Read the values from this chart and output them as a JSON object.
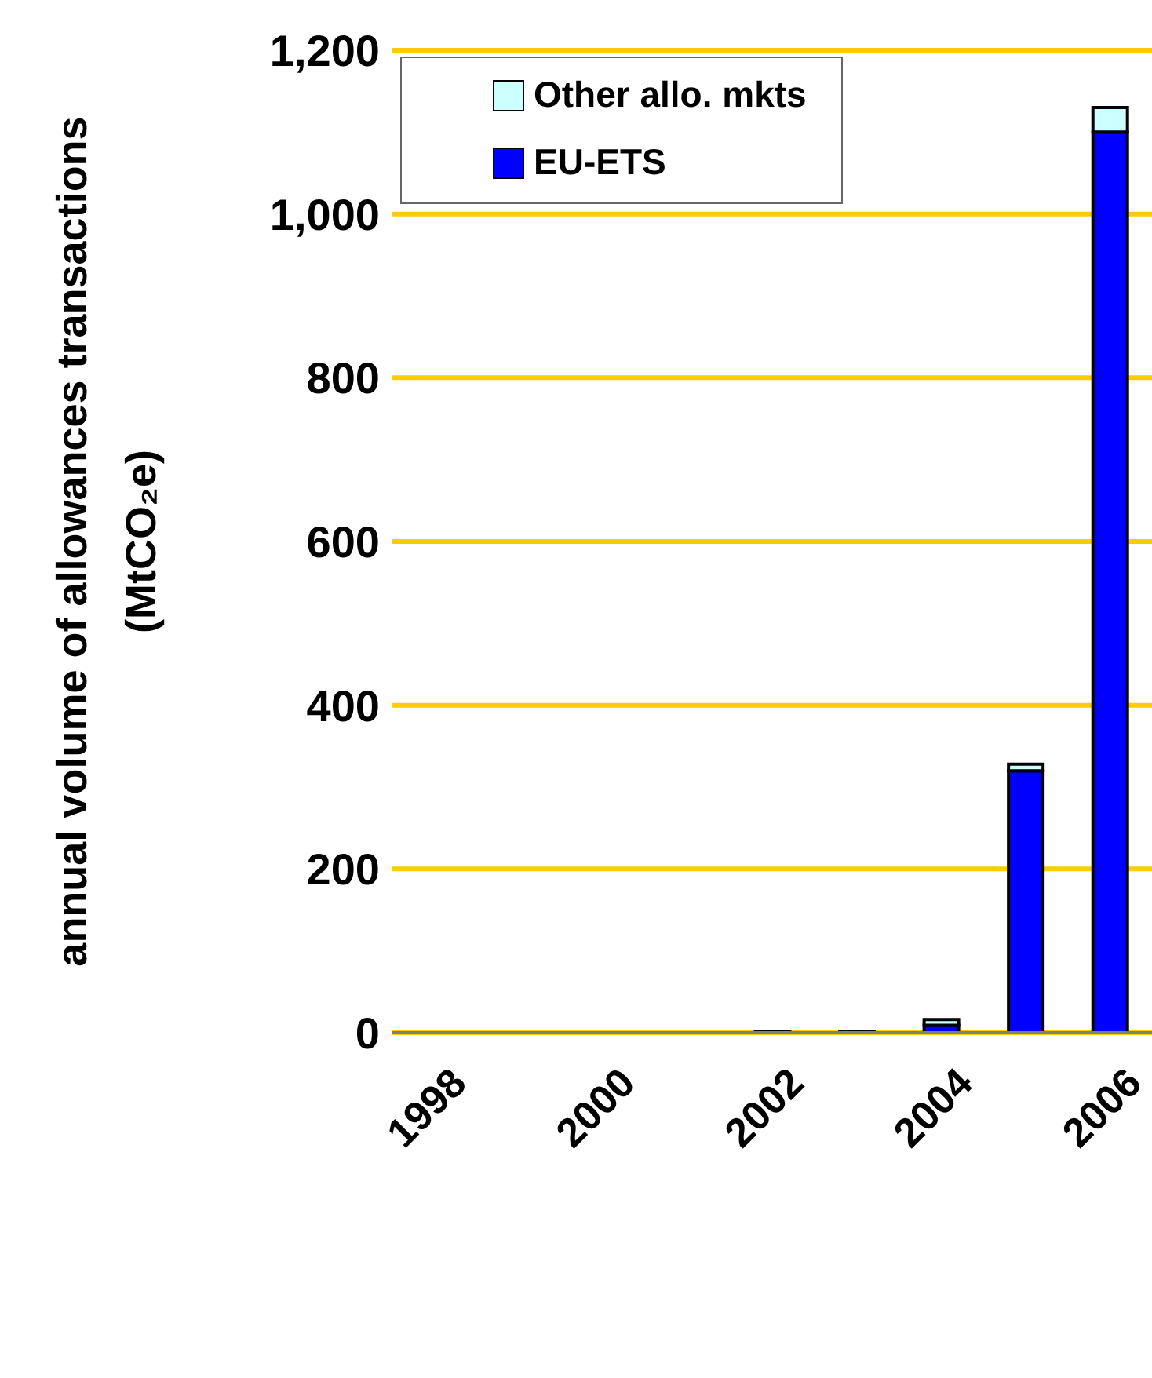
{
  "chart_data": {
    "type": "bar",
    "stacked": true,
    "ylabel": "annual volume of allowances transactions\n(MtCO₂e)",
    "categories": [
      "1998",
      null,
      "2000",
      null,
      "2002",
      null,
      "2004",
      null,
      "2006"
    ],
    "series": [
      {
        "name": "EU-ETS",
        "color": "#0000ff",
        "values": [
          null,
          null,
          null,
          null,
          null,
          null,
          9,
          320,
          1100
        ]
      },
      {
        "name": "Other allo. mkts",
        "color": "#ccffff",
        "values": [
          null,
          null,
          null,
          null,
          2,
          2,
          7,
          8,
          30
        ]
      }
    ],
    "ylim": [
      0,
      1200
    ],
    "yticks": [
      0,
      200,
      400,
      600,
      800,
      {
        "value": 1000,
        "label": "1,000"
      },
      {
        "value": 1200,
        "label": "1,200"
      }
    ],
    "grid": "y",
    "legend": "top left"
  }
}
